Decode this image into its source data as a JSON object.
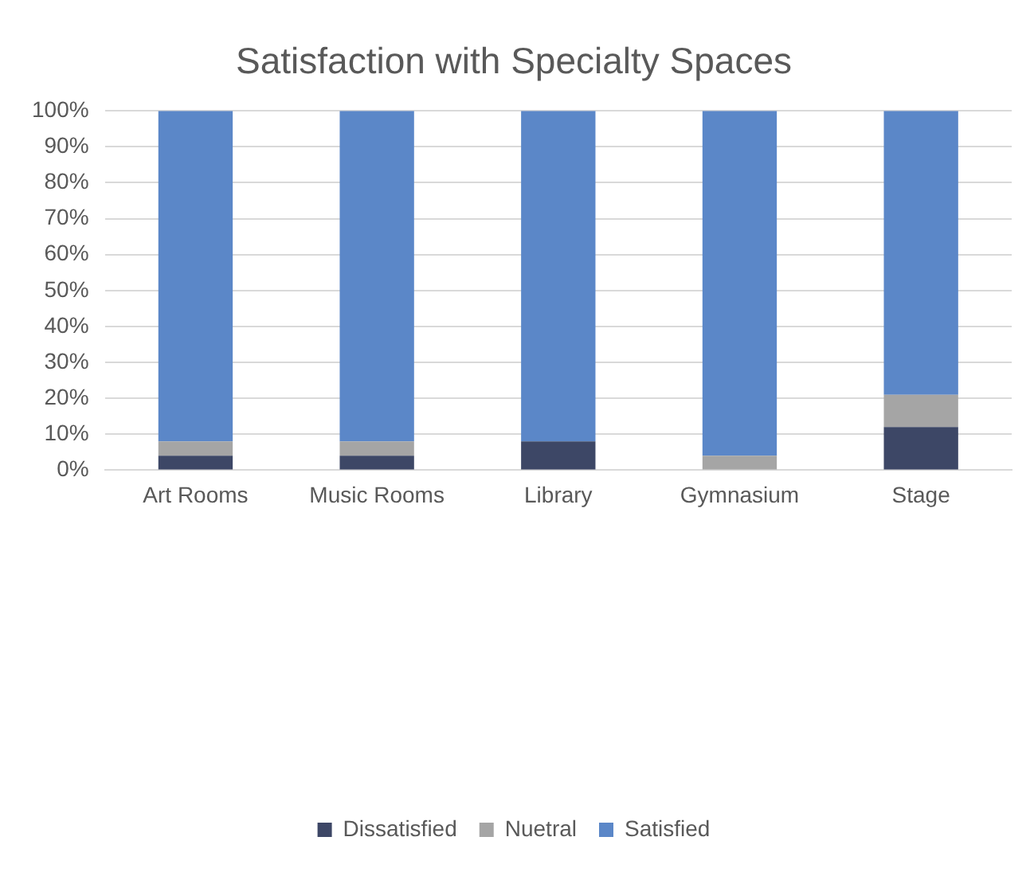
{
  "chart_data": {
    "type": "bar",
    "title": "Satisfaction with Specialty Spaces",
    "categories": [
      "Art Rooms",
      "Music Rooms",
      "Library",
      "Gymnasium",
      "Stage"
    ],
    "series": [
      {
        "name": "Dissatisfied",
        "color": "#3d4766",
        "values": [
          4,
          4,
          8,
          0,
          12
        ]
      },
      {
        "name": "Nuetral",
        "color": "#a5a5a5",
        "values": [
          4,
          4,
          0,
          4,
          9
        ]
      },
      {
        "name": "Satisfied",
        "color": "#5b87c8",
        "values": [
          92,
          92,
          92,
          96,
          79
        ]
      }
    ],
    "stacked": true,
    "ylim": [
      0,
      100
    ],
    "yticks": [
      {
        "value": 0,
        "label": "0%"
      },
      {
        "value": 10,
        "label": "10%"
      },
      {
        "value": 20,
        "label": "20%"
      },
      {
        "value": 30,
        "label": "30%"
      },
      {
        "value": 40,
        "label": "40%"
      },
      {
        "value": 50,
        "label": "50%"
      },
      {
        "value": 60,
        "label": "60%"
      },
      {
        "value": 70,
        "label": "70%"
      },
      {
        "value": 80,
        "label": "80%"
      },
      {
        "value": 90,
        "label": "90%"
      },
      {
        "value": 100,
        "label": "100%"
      }
    ],
    "grid": "y",
    "legend": "bottom"
  }
}
